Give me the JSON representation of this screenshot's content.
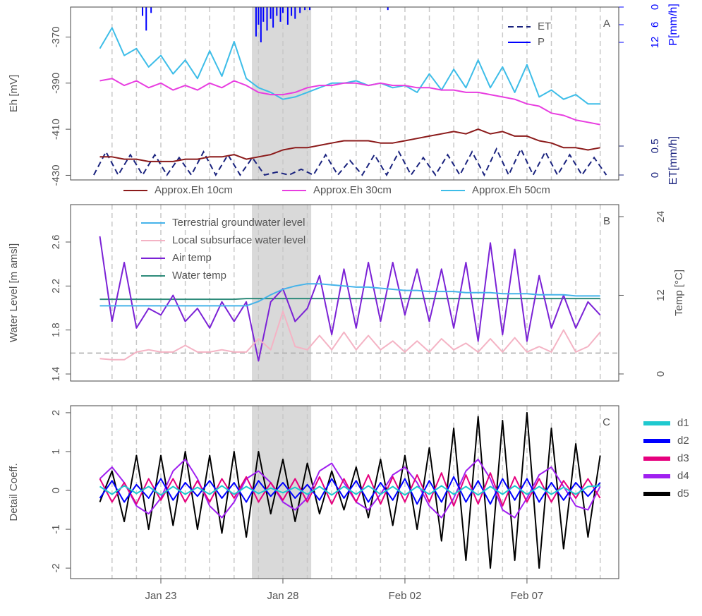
{
  "chart_data": [
    {
      "type": "line",
      "panel": "A",
      "ylabel": "Eh [mV]",
      "xlim": [
        19.3,
        41.76
      ],
      "ylim": [
        -432,
        -357
      ],
      "yticks": [
        -370,
        -390,
        -410,
        -430
      ],
      "highlight": [
        26.73,
        29.16
      ],
      "legend": "bottom",
      "right_legend": "top-right",
      "x": [
        20.5,
        21,
        21.5,
        22,
        22.5,
        23,
        23.5,
        24,
        24.5,
        25,
        25.5,
        26,
        26.5,
        27,
        27.5,
        28,
        28.5,
        29,
        29.5,
        30,
        30.5,
        31,
        31.5,
        32,
        32.5,
        33,
        33.5,
        34,
        34.5,
        35,
        35.5,
        36,
        36.5,
        37,
        37.5,
        38,
        38.5,
        39,
        39.5,
        40,
        40.5,
        41
      ],
      "series": [
        {
          "name": "Approx.Eh 10cm",
          "color": "#8b1a1a",
          "values": [
            -422,
            -422,
            -423,
            -423,
            -424,
            -424,
            -424,
            -423,
            -423,
            -422,
            -422,
            -421,
            -423,
            -422,
            -421,
            -419,
            -418,
            -418,
            -417,
            -416,
            -415,
            -415,
            -415,
            -416,
            -416,
            -415,
            -414,
            -413,
            -412,
            -411,
            -412,
            -410,
            -412,
            -411,
            -413,
            -413,
            -415,
            -416,
            -418,
            -418,
            -419,
            -418
          ]
        },
        {
          "name": "Approx.Eh 30cm",
          "color": "#e83de0",
          "values": [
            -389,
            -388,
            -391,
            -389,
            -392,
            -390,
            -393,
            -391,
            -393,
            -390,
            -392,
            -389,
            -391,
            -394,
            -395,
            -395,
            -394,
            -392,
            -391,
            -391,
            -390,
            -390,
            -391,
            -390,
            -391,
            -391,
            -392,
            -392,
            -393,
            -393,
            -394,
            -394,
            -395,
            -396,
            -397,
            -399,
            -400,
            -403,
            -404,
            -406,
            -407,
            -408
          ]
        },
        {
          "name": "Approx.Eh 50cm",
          "color": "#3dbde8",
          "values": [
            -375,
            -366,
            -378,
            -375,
            -383,
            -378,
            -386,
            -380,
            -388,
            -376,
            -387,
            -372,
            -388,
            -392,
            -394,
            -397,
            -396,
            -394,
            -392,
            -390,
            -390,
            -389,
            -391,
            -390,
            -392,
            -391,
            -394,
            -386,
            -393,
            -384,
            -392,
            -380,
            -392,
            -383,
            -394,
            -382,
            -396,
            -393,
            -397,
            -395,
            -399,
            -399
          ]
        }
      ],
      "right_series": [
        {
          "name": "ET",
          "type": "line",
          "color": "#1a237e",
          "dash": true,
          "axis_label": "ET[mm/h]",
          "ylim": [
            -0.085,
            2.9
          ],
          "ticks": [
            0,
            0.5
          ],
          "x": [
            20.25,
            20.75,
            21.25,
            21.75,
            22.25,
            22.75,
            23.25,
            23.75,
            24.25,
            24.75,
            25.25,
            25.75,
            26.25,
            26.75,
            27.25,
            27.75,
            28.25,
            28.75,
            29.25,
            29.75,
            30.25,
            30.75,
            31.25,
            31.75,
            32.25,
            32.75,
            33.25,
            33.75,
            34.25,
            34.75,
            35.25,
            35.75,
            36.25,
            36.75,
            37.25,
            37.75,
            38.25,
            38.75,
            39.25,
            39.75,
            40.25,
            40.75,
            41.25
          ],
          "values": [
            0,
            0.4,
            0,
            0.35,
            0,
            0.35,
            0,
            0.3,
            0,
            0.4,
            0,
            0.35,
            0,
            0.3,
            0,
            0.05,
            0,
            0.1,
            0,
            0.35,
            0,
            0.25,
            0,
            0.35,
            0,
            0.4,
            0,
            0.3,
            0,
            0.35,
            0,
            0.4,
            0,
            0.45,
            0,
            0.45,
            0,
            0.4,
            0,
            0.35,
            0,
            0.3,
            0
          ]
        },
        {
          "name": "P",
          "type": "bar",
          "color": "#0000ff",
          "reversed": true,
          "axis_label": "P[mm/h]",
          "ylim": [
            0,
            58.8
          ],
          "ticks": [
            0,
            6,
            12
          ],
          "x": [
            22.25,
            22.4,
            22.6,
            26.9,
            27.0,
            27.1,
            27.2,
            27.35,
            27.5,
            27.6,
            27.75,
            27.9,
            28.0,
            28.2,
            28.35,
            28.5,
            28.7,
            28.9,
            29.1,
            32.3
          ],
          "values": [
            3,
            8,
            2,
            10,
            6,
            12,
            5,
            8,
            4,
            7,
            3,
            5,
            2,
            6,
            3,
            4,
            2,
            1,
            1,
            1
          ]
        }
      ]
    },
    {
      "type": "line",
      "panel": "B",
      "ylabel": "Water Level [m amsl]",
      "y2label": "Temp [°C]",
      "xlim": [
        19.3,
        41.76
      ],
      "ylim": [
        1.336,
        2.94
      ],
      "yticks": [
        1.4,
        1.8,
        2.2,
        2.6
      ],
      "y2lim": [
        -1.08,
        25.83
      ],
      "y2ticks": [
        0,
        12,
        24
      ],
      "hline": 1.59,
      "highlight": [
        26.73,
        29.16
      ],
      "legend": "top-left",
      "x": [
        20.5,
        21,
        21.5,
        22,
        22.5,
        23,
        23.5,
        24,
        24.5,
        25,
        25.5,
        26,
        26.5,
        27,
        27.5,
        28,
        28.5,
        29,
        29.5,
        30,
        30.5,
        31,
        31.5,
        32,
        32.5,
        33,
        33.5,
        34,
        34.5,
        35,
        35.5,
        36,
        36.5,
        37,
        37.5,
        38,
        38.5,
        39,
        39.5,
        40,
        40.5,
        41
      ],
      "series": [
        {
          "name": "Terrestrial groundwater level",
          "color": "#45b3ea",
          "values": [
            2.02,
            2.02,
            2.02,
            2.02,
            2.02,
            2.02,
            2.02,
            2.02,
            2.02,
            2.02,
            2.02,
            2.02,
            2.02,
            2.06,
            2.12,
            2.17,
            2.2,
            2.22,
            2.22,
            2.21,
            2.2,
            2.19,
            2.19,
            2.18,
            2.17,
            2.16,
            2.16,
            2.15,
            2.15,
            2.15,
            2.14,
            2.14,
            2.14,
            2.13,
            2.13,
            2.13,
            2.12,
            2.12,
            2.12,
            2.11,
            2.11,
            2.11
          ]
        },
        {
          "name": "Local subsurface water level",
          "color": "#f4b3c4",
          "values": [
            1.54,
            1.53,
            1.53,
            1.6,
            1.62,
            1.6,
            1.6,
            1.66,
            1.6,
            1.6,
            1.62,
            1.6,
            1.6,
            1.72,
            1.62,
            1.97,
            1.65,
            1.62,
            1.75,
            1.62,
            1.78,
            1.62,
            1.75,
            1.62,
            1.7,
            1.6,
            1.7,
            1.6,
            1.72,
            1.62,
            1.68,
            1.6,
            1.72,
            1.6,
            1.73,
            1.6,
            1.65,
            1.6,
            1.8,
            1.6,
            1.65,
            1.78
          ]
        },
        {
          "name": "Air temp",
          "color": "#7b22d6",
          "axis": "y2",
          "values": [
            21,
            8,
            17,
            7,
            10,
            9,
            12,
            8,
            10,
            7,
            11,
            8,
            11,
            2,
            11,
            13,
            8,
            10,
            15,
            6,
            16,
            7,
            17,
            8,
            17,
            9,
            16,
            8,
            16,
            7,
            17,
            5,
            20,
            6,
            19,
            5,
            15,
            7,
            12,
            7,
            11,
            9
          ]
        },
        {
          "name": "Water temp",
          "color": "#2e8b7a",
          "axis": "y2",
          "values": [
            11.4,
            11.4,
            11.4,
            11.4,
            11.4,
            11.4,
            11.4,
            11.4,
            11.4,
            11.4,
            11.4,
            11.4,
            11.5,
            11.5,
            11.5,
            11.5,
            11.5,
            11.5,
            11.5,
            11.5,
            11.5,
            11.5,
            11.5,
            11.5,
            11.5,
            11.5,
            11.5,
            11.5,
            11.5,
            11.5,
            11.5,
            11.5,
            11.5,
            11.5,
            11.5,
            11.5,
            11.5,
            11.5,
            11.5,
            11.5,
            11.5,
            11.5
          ]
        }
      ]
    },
    {
      "type": "line",
      "panel": "C",
      "ylabel": "Detail Coeff.",
      "xlim": [
        19.3,
        41.76
      ],
      "ylim": [
        -2.27,
        2.18
      ],
      "yticks": [
        -2,
        -1,
        0,
        1,
        2
      ],
      "xticks": [
        {
          "value": 23,
          "label": "Jan 23"
        },
        {
          "value": 28,
          "label": "Jan 28"
        },
        {
          "value": 33,
          "label": "Feb 02"
        },
        {
          "value": 38,
          "label": "Feb 07"
        }
      ],
      "highlight": [
        26.73,
        29.16
      ],
      "legend": "right",
      "x": [
        20.5,
        21,
        21.5,
        22,
        22.5,
        23,
        23.5,
        24,
        24.5,
        25,
        25.5,
        26,
        26.5,
        27,
        27.5,
        28,
        28.5,
        29,
        29.5,
        30,
        30.5,
        31,
        31.5,
        32,
        32.5,
        33,
        33.5,
        34,
        34.5,
        35,
        35.5,
        36,
        36.5,
        37,
        37.5,
        38,
        38.5,
        39,
        39.5,
        40,
        40.5,
        41
      ],
      "series": [
        {
          "name": "d1",
          "color": "#1fc9cf",
          "values": [
            0.1,
            -0.1,
            0.12,
            -0.08,
            0.1,
            -0.12,
            0.1,
            -0.1,
            0.08,
            -0.1,
            0.12,
            -0.1,
            0.1,
            -0.08,
            0.06,
            -0.06,
            0.08,
            -0.1,
            0.1,
            -0.12,
            0.1,
            -0.1,
            0.12,
            -0.1,
            0.1,
            -0.12,
            0.1,
            -0.1,
            0.12,
            -0.1,
            0.1,
            -0.12,
            0.1,
            -0.1,
            0.12,
            -0.1,
            0.1,
            -0.1,
            0.08,
            -0.1,
            0.1,
            0.12
          ]
        },
        {
          "name": "d2",
          "color": "#0000ff",
          "values": [
            -0.2,
            0.25,
            -0.3,
            0.15,
            -0.2,
            0.3,
            -0.25,
            0.2,
            -0.15,
            0.25,
            -0.2,
            0.2,
            -0.3,
            0.25,
            -0.15,
            0.2,
            -0.2,
            0.15,
            -0.25,
            0.3,
            -0.2,
            0.25,
            -0.3,
            0.2,
            -0.25,
            0.3,
            -0.35,
            0.25,
            -0.3,
            0.35,
            -0.3,
            0.25,
            -0.35,
            0.3,
            -0.25,
            0.3,
            -0.3,
            0.2,
            -0.25,
            0.2,
            -0.15,
            0.2
          ]
        },
        {
          "name": "d3",
          "color": "#e6007e",
          "values": [
            0.3,
            -0.3,
            0.2,
            -0.35,
            0.3,
            -0.25,
            0.3,
            -0.3,
            0.25,
            -0.3,
            0.3,
            -0.2,
            0.35,
            -0.3,
            0.2,
            -0.25,
            0.3,
            -0.3,
            0.35,
            -0.35,
            0.3,
            -0.3,
            0.4,
            -0.35,
            0.35,
            -0.3,
            0.4,
            -0.3,
            0.45,
            -0.4,
            0.4,
            -0.35,
            0.45,
            -0.4,
            0.35,
            -0.3,
            0.3,
            -0.3,
            0.25,
            -0.2,
            0.3,
            -0.2
          ]
        },
        {
          "name": "d4",
          "color": "#a020f0",
          "values": [
            0.3,
            0.6,
            0.2,
            -0.4,
            -0.6,
            -0.2,
            0.5,
            0.8,
            0.3,
            -0.4,
            -0.7,
            -0.3,
            0.3,
            0.5,
            0.2,
            -0.3,
            -0.5,
            -0.2,
            0.5,
            0.7,
            0.2,
            -0.3,
            -0.5,
            -0.1,
            0.4,
            0.6,
            0.2,
            -0.4,
            -0.7,
            -0.2,
            0.5,
            0.8,
            0.3,
            -0.5,
            -0.7,
            -0.2,
            0.4,
            0.6,
            0.1,
            -0.4,
            -0.5,
            0.1
          ]
        },
        {
          "name": "d5",
          "color": "#000000",
          "values": [
            -0.3,
            0.5,
            -0.8,
            0.9,
            -1.0,
            0.9,
            -0.9,
            1.0,
            -1.0,
            0.9,
            -1.1,
            1.0,
            -1.2,
            1.0,
            -0.6,
            0.8,
            -0.8,
            0.7,
            -0.6,
            0.5,
            -0.5,
            0.6,
            -0.7,
            0.8,
            -0.9,
            0.9,
            -1.0,
            1.1,
            -1.3,
            1.6,
            -1.8,
            1.9,
            -2.0,
            1.8,
            -1.8,
            2.0,
            -2.0,
            1.6,
            -1.5,
            1.2,
            -1.2,
            0.9
          ]
        }
      ]
    }
  ]
}
